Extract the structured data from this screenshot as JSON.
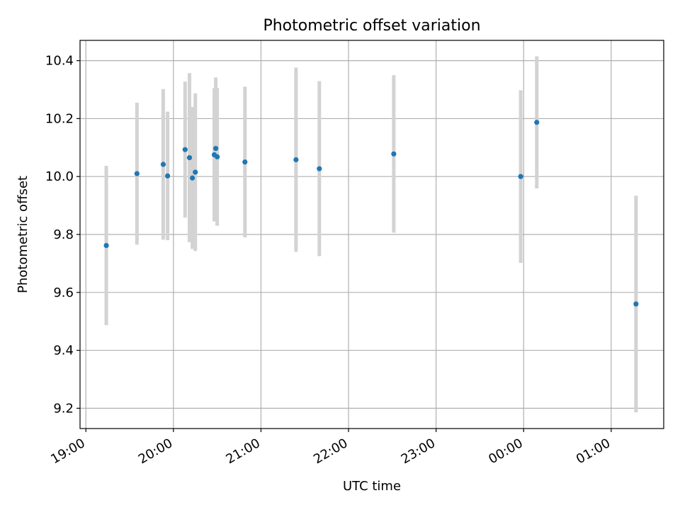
{
  "chart_data": {
    "type": "scatter",
    "title": "Photometric offset variation",
    "xlabel": "UTC time",
    "ylabel": "Photometric offset",
    "x_is_time": true,
    "xlim": [
      "18:56",
      "01:36"
    ],
    "ylim": [
      9.13,
      10.47
    ],
    "x_ticks": [
      "19:00",
      "20:00",
      "21:00",
      "22:00",
      "23:00",
      "00:00",
      "01:00"
    ],
    "y_ticks": [
      9.2,
      9.4,
      9.6,
      9.8,
      10.0,
      10.2,
      10.4
    ],
    "grid": true,
    "point_color": "#1f77b4",
    "errorbar_color": "#d3d3d3",
    "points": [
      {
        "t": "19:14",
        "y": 9.762,
        "err": 0.275
      },
      {
        "t": "19:35",
        "y": 10.01,
        "err": 0.245
      },
      {
        "t": "19:53",
        "y": 10.042,
        "err": 0.26
      },
      {
        "t": "19:56",
        "y": 10.002,
        "err": 0.222
      },
      {
        "t": "20:08",
        "y": 10.093,
        "err": 0.235
      },
      {
        "t": "20:11",
        "y": 10.065,
        "err": 0.292
      },
      {
        "t": "20:13",
        "y": 9.995,
        "err": 0.245
      },
      {
        "t": "20:15",
        "y": 10.015,
        "err": 0.272
      },
      {
        "t": "20:28",
        "y": 10.075,
        "err": 0.23
      },
      {
        "t": "20:29",
        "y": 10.097,
        "err": 0.245
      },
      {
        "t": "20:30",
        "y": 10.068,
        "err": 0.238
      },
      {
        "t": "20:49",
        "y": 10.05,
        "err": 0.26
      },
      {
        "t": "21:24",
        "y": 10.058,
        "err": 0.318
      },
      {
        "t": "21:40",
        "y": 10.027,
        "err": 0.302
      },
      {
        "t": "22:31",
        "y": 10.078,
        "err": 0.272
      },
      {
        "t": "23:58",
        "y": 10.0,
        "err": 0.298
      },
      {
        "t": "00:09",
        "y": 10.187,
        "err": 0.228
      },
      {
        "t": "01:17",
        "y": 9.56,
        "err": 0.374
      }
    ]
  }
}
